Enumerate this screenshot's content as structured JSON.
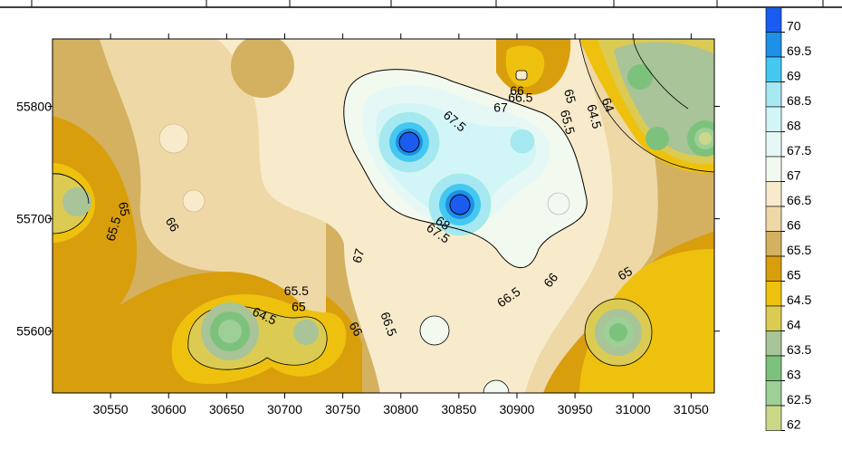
{
  "chart_data": {
    "type": "heatmap",
    "subtype": "filled-contour",
    "title": "",
    "xlabel": "",
    "ylabel": "",
    "xlim": [
      30500,
      31070
    ],
    "ylim": [
      55545,
      55860
    ],
    "x_ticks": [
      30550,
      30600,
      30650,
      30700,
      30750,
      30800,
      30850,
      30900,
      30950,
      31000,
      31050
    ],
    "y_ticks": [
      55600,
      55700,
      55800
    ],
    "grid": false,
    "legend_position": "right",
    "color_scale": [
      {
        "level": "70",
        "color": "#1a5cf0"
      },
      {
        "level": "69.5",
        "color": "#1e90e8"
      },
      {
        "level": "69",
        "color": "#45c8f0"
      },
      {
        "level": "68.5",
        "color": "#a6e8f2"
      },
      {
        "level": "68",
        "color": "#d2f5f7"
      },
      {
        "level": "67.5",
        "color": "#e6f8f5"
      },
      {
        "level": "67",
        "color": "#f2faf0"
      },
      {
        "level": "66.5",
        "color": "#f8ebcc"
      },
      {
        "level": "66",
        "color": "#eed8a6"
      },
      {
        "level": "65.5",
        "color": "#d4b160"
      },
      {
        "level": "65",
        "color": "#d99e0c"
      },
      {
        "level": "64.5",
        "color": "#eec10e"
      },
      {
        "level": "64",
        "color": "#dccb52"
      },
      {
        "level": "63.5",
        "color": "#a8c498"
      },
      {
        "level": "63",
        "color": "#7cc27c"
      },
      {
        "level": "62.5",
        "color": "#9dcf96"
      },
      {
        "level": "62",
        "color": "#cbd88a"
      }
    ],
    "contour_labels": [
      {
        "text": "65",
        "x": 30558,
        "y": 55708,
        "rotate": 80
      },
      {
        "text": "65.5",
        "x": 30556,
        "y": 55690,
        "rotate": -75
      },
      {
        "text": "66",
        "x": 30600,
        "y": 55693,
        "rotate": 60
      },
      {
        "text": "65.5",
        "x": 30710,
        "y": 55632,
        "rotate": 0
      },
      {
        "text": "65",
        "x": 30712,
        "y": 55618,
        "rotate": 0
      },
      {
        "text": "64.5",
        "x": 30681,
        "y": 55610,
        "rotate": 25
      },
      {
        "text": "66",
        "x": 30758,
        "y": 55600,
        "rotate": 60
      },
      {
        "text": "66.5",
        "x": 30786,
        "y": 55605,
        "rotate": 70
      },
      {
        "text": "67",
        "x": 30767,
        "y": 55666,
        "rotate": -75
      },
      {
        "text": "68",
        "x": 30834,
        "y": 55693,
        "rotate": 35
      },
      {
        "text": "67.5",
        "x": 30830,
        "y": 55684,
        "rotate": 35
      },
      {
        "text": "67.5",
        "x": 30844,
        "y": 55784,
        "rotate": 40
      },
      {
        "text": "67",
        "x": 30886,
        "y": 55795,
        "rotate": 0
      },
      {
        "text": "66.5",
        "x": 30903,
        "y": 55804,
        "rotate": 0
      },
      {
        "text": "66",
        "x": 30900,
        "y": 55810,
        "rotate": 0
      },
      {
        "text": "65",
        "x": 30942,
        "y": 55808,
        "rotate": 75
      },
      {
        "text": "65.5",
        "x": 30940,
        "y": 55785,
        "rotate": 75
      },
      {
        "text": "64.5",
        "x": 30963,
        "y": 55790,
        "rotate": 75
      },
      {
        "text": "64",
        "x": 30975,
        "y": 55800,
        "rotate": 70
      },
      {
        "text": "66.5",
        "x": 30895,
        "y": 55627,
        "rotate": -35
      },
      {
        "text": "66",
        "x": 30932,
        "y": 55643,
        "rotate": -50
      },
      {
        "text": "65",
        "x": 30995,
        "y": 55648,
        "rotate": -30
      }
    ]
  }
}
